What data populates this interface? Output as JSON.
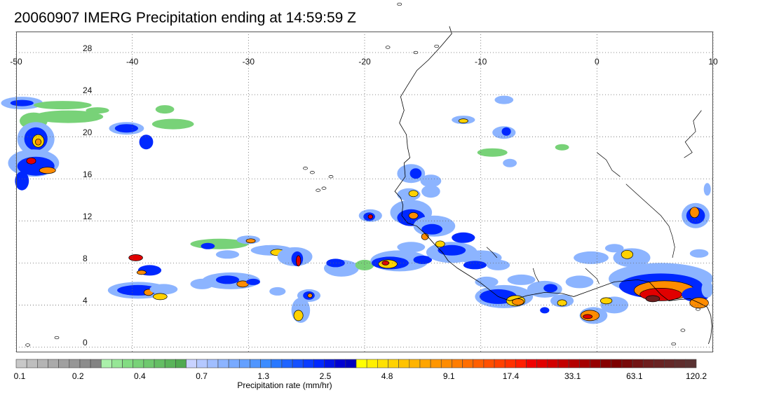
{
  "title": "20060907 IMERG Precipitation ending at 14:59:59 Z",
  "map": {
    "lon_range": [
      -50,
      10
    ],
    "lat_range": [
      -0.5,
      30
    ],
    "lon_ticks": [
      "-50",
      "-40",
      "-30",
      "-20",
      "-10",
      "0",
      "10"
    ],
    "lat_ticks": [
      "28",
      "24",
      "20",
      "16",
      "12",
      "8",
      "4",
      "0"
    ],
    "lon_values": [
      -50,
      -40,
      -30,
      -20,
      -10,
      0,
      10
    ],
    "lat_values": [
      28,
      24,
      20,
      16,
      12,
      8,
      4,
      0
    ],
    "grid": true,
    "region": "Eastern tropical Atlantic and West Africa",
    "frame_color": "#555555",
    "coastline_color": "#000000"
  },
  "colorbar": {
    "title": "Precipitation rate (mm/hr)",
    "tick_labels": [
      "0.1",
      "0.2",
      "0.4",
      "0.7",
      "1.3",
      "2.5",
      "4.8",
      "9.1",
      "17.4",
      "33.1",
      "63.1",
      "120.2"
    ],
    "colors": [
      "#c8c8c8",
      "#bebebe",
      "#b4b4b4",
      "#aaaaaa",
      "#a0a0a0",
      "#969696",
      "#8c8c8c",
      "#828282",
      "#aaf0aa",
      "#96e696",
      "#82dc82",
      "#78d278",
      "#6ec86e",
      "#64be64",
      "#5ab45a",
      "#50aa50",
      "#c8d2ff",
      "#b4c8ff",
      "#a0beff",
      "#8cb4ff",
      "#78aaff",
      "#64a0ff",
      "#5096ff",
      "#3c8cff",
      "#2878ff",
      "#1e64ff",
      "#1450ff",
      "#0a3cff",
      "#0028ff",
      "#0014e6",
      "#0000d2",
      "#0000be",
      "#ffff00",
      "#fff000",
      "#ffe100",
      "#ffd200",
      "#ffc300",
      "#ffb400",
      "#ffa500",
      "#ff9600",
      "#ff8c00",
      "#ff7d00",
      "#ff6e00",
      "#ff5f00",
      "#ff5000",
      "#ff4100",
      "#ff3200",
      "#ff1e00",
      "#f00000",
      "#e10000",
      "#d20000",
      "#c30000",
      "#b40000",
      "#a50000",
      "#960000",
      "#870000",
      "#7d0000",
      "#780a0a",
      "#731414",
      "#6e1e1e",
      "#692323",
      "#642828",
      "#5f2d2d",
      "#5a3232"
    ],
    "levels_per_label": 8
  },
  "legend_scale": {
    "gray": "#a0a0a0",
    "green": "#78d278",
    "light_blue": "#8cb4ff",
    "blue": "#0028ff",
    "yellow": "#ffd200",
    "orange": "#ff8c00",
    "red": "#e10000",
    "dark_red": "#6e1e1e"
  }
}
